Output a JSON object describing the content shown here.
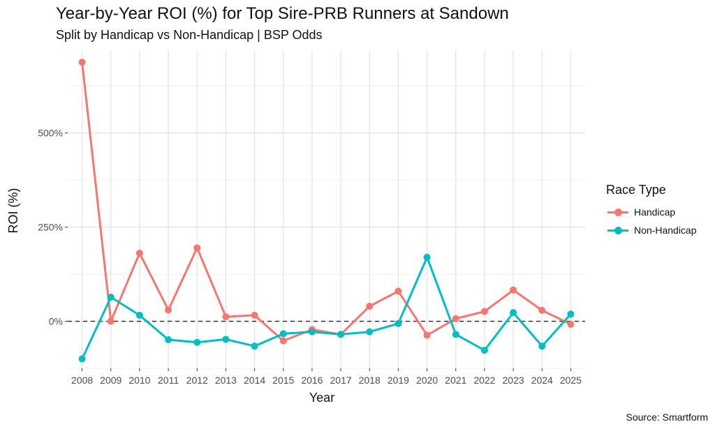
{
  "chart_data": {
    "type": "line",
    "title": "Year-by-Year ROI (%) for Top Sire-PRB Runners at Sandown",
    "subtitle": "Split by Handicap vs Non-Handicap | BSP Odds",
    "caption": "Source: Smartform",
    "xlabel": "Year",
    "ylabel": "ROI (%)",
    "x": [
      "2008",
      "2009",
      "2010",
      "2011",
      "2012",
      "2013",
      "2014",
      "2015",
      "2016",
      "2017",
      "2018",
      "2019",
      "2020",
      "2021",
      "2022",
      "2023",
      "2024",
      "2025"
    ],
    "y_ticks": [
      0,
      250,
      500
    ],
    "y_tick_labels": [
      "0%",
      "250%",
      "500%"
    ],
    "ylim": [
      -125,
      720
    ],
    "grid": true,
    "reference_line": {
      "y": 0,
      "style": "dashed"
    },
    "legend": {
      "title": "Race Type",
      "position": "right"
    },
    "series": [
      {
        "name": "Handicap",
        "color": "#F8766D",
        "values": [
          688,
          0,
          181,
          30,
          195,
          12,
          16,
          -52,
          -22,
          -35,
          40,
          80,
          -37,
          7,
          26,
          83,
          29,
          -8
        ]
      },
      {
        "name": "Non-Handicap",
        "color": "#00BFC4",
        "values": [
          -100,
          64,
          16,
          -49,
          -56,
          -48,
          -66,
          -33,
          -28,
          -35,
          -28,
          -6,
          170,
          -35,
          -77,
          23,
          -66,
          19
        ]
      }
    ]
  }
}
